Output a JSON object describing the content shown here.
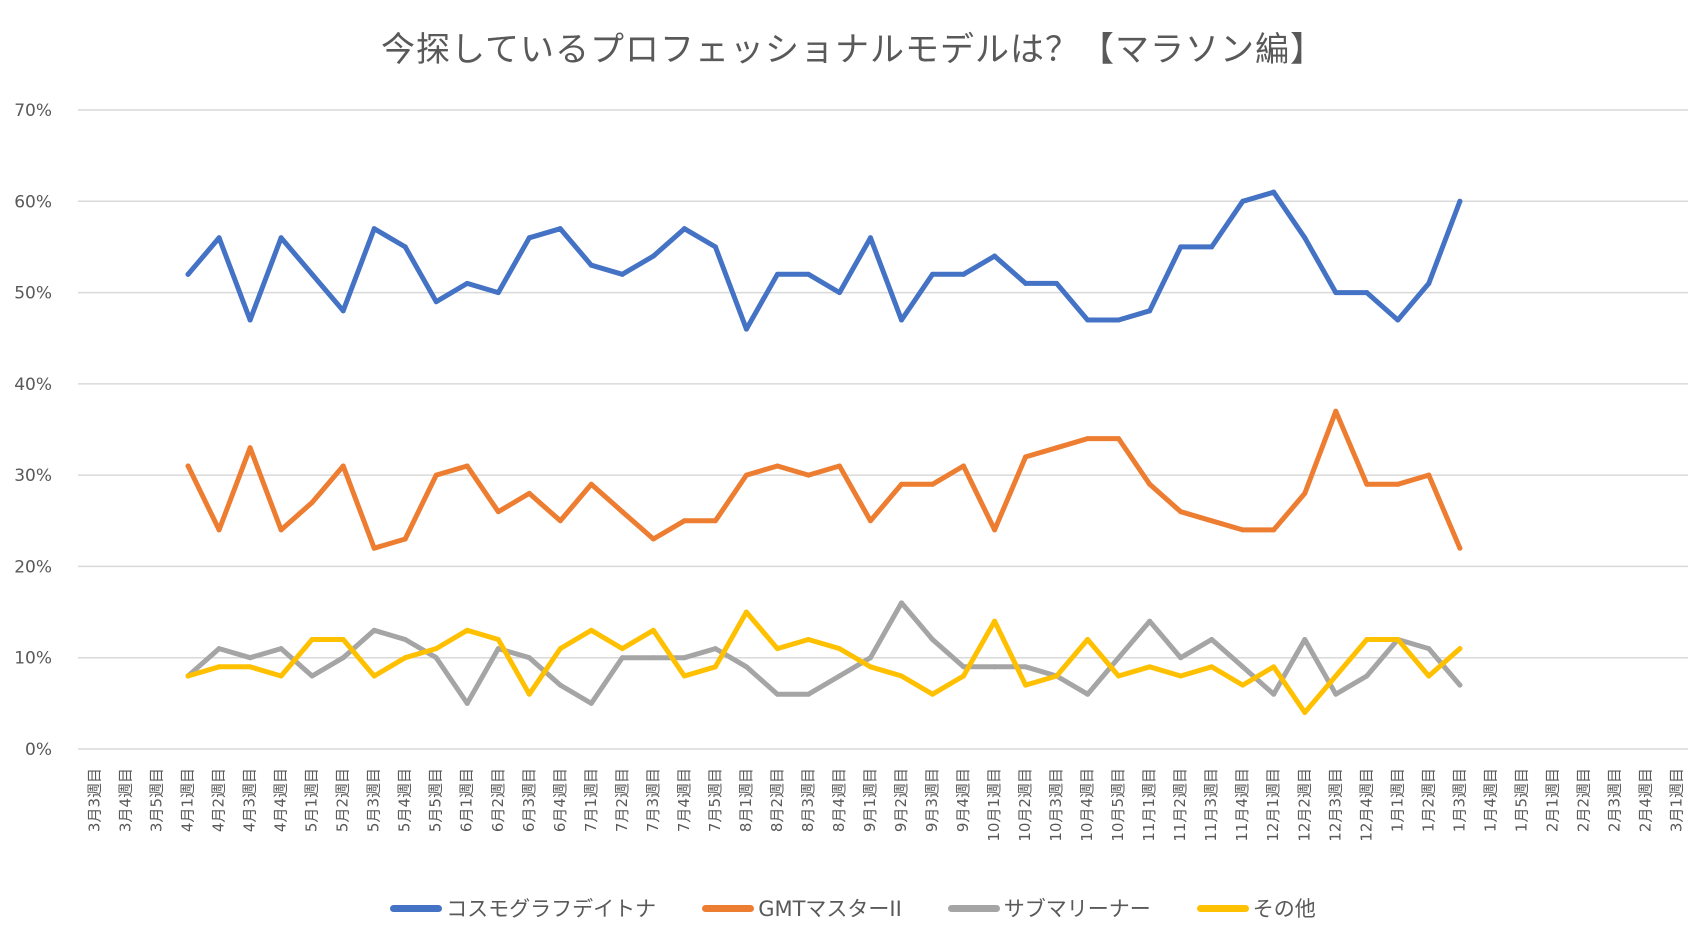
{
  "chart_data": {
    "type": "line",
    "title": "今探しているプロフェッショナルモデルは？【マラソン編】",
    "xlabel": "",
    "ylabel": "",
    "ylim": [
      0,
      70
    ],
    "y_ticks": [
      "0%",
      "10%",
      "20%",
      "30%",
      "40%",
      "50%",
      "60%",
      "70%"
    ],
    "y_tick_values": [
      0,
      10,
      20,
      30,
      40,
      50,
      60,
      70
    ],
    "grid": true,
    "legend_position": "bottom",
    "categories": [
      "3月3週目",
      "3月4週目",
      "3月5週目",
      "4月1週目",
      "4月2週目",
      "4月3週目",
      "4月4週目",
      "5月1週目",
      "5月2週目",
      "5月3週目",
      "5月4週目",
      "5月5週目",
      "6月1週目",
      "6月2週目",
      "6月3週目",
      "6月4週目",
      "7月1週目",
      "7月2週目",
      "7月3週目",
      "7月4週目",
      "7月5週目",
      "8月1週目",
      "8月2週目",
      "8月3週目",
      "8月4週目",
      "9月1週目",
      "9月2週目",
      "9月3週目",
      "9月4週目",
      "10月1週目",
      "10月2週目",
      "10月3週目",
      "10月4週目",
      "10月5週目",
      "11月1週目",
      "11月2週目",
      "11月3週目",
      "11月4週目",
      "12月1週目",
      "12月2週目",
      "12月3週目",
      "12月4週目",
      "1月1週目",
      "1月2週目",
      "1月3週目",
      "1月4週目",
      "1月5週目",
      "2月1週目",
      "2月2週目",
      "2月3週目",
      "2月4週目",
      "3月1週目"
    ],
    "series": [
      {
        "name": "コスモグラフデイトナ",
        "color": "#4472C4",
        "values": [
          null,
          null,
          null,
          52,
          56,
          47,
          56,
          52,
          48,
          57,
          55,
          49,
          51,
          50,
          56,
          57,
          53,
          52,
          54,
          57,
          55,
          46,
          52,
          52,
          50,
          56,
          47,
          52,
          52,
          54,
          51,
          51,
          47,
          47,
          48,
          55,
          55,
          60,
          61,
          56,
          50,
          50,
          47,
          51,
          60,
          null,
          null,
          null,
          null,
          null,
          null,
          null
        ]
      },
      {
        "name": "GMTマスターII",
        "color": "#ED7D31",
        "values": [
          null,
          null,
          null,
          31,
          24,
          33,
          24,
          27,
          31,
          22,
          23,
          30,
          31,
          26,
          28,
          25,
          29,
          26,
          23,
          25,
          25,
          30,
          31,
          30,
          31,
          25,
          29,
          29,
          31,
          24,
          32,
          33,
          34,
          34,
          29,
          26,
          25,
          24,
          24,
          28,
          37,
          29,
          29,
          30,
          22,
          null,
          null,
          null,
          null,
          null,
          null,
          null
        ]
      },
      {
        "name": "サブマリーナー",
        "color": "#A5A5A5",
        "values": [
          null,
          null,
          null,
          8,
          11,
          10,
          11,
          8,
          10,
          13,
          12,
          10,
          5,
          11,
          10,
          7,
          5,
          10,
          10,
          10,
          11,
          9,
          6,
          6,
          8,
          10,
          16,
          12,
          9,
          9,
          9,
          8,
          6,
          10,
          14,
          10,
          12,
          9,
          6,
          12,
          6,
          8,
          12,
          11,
          7,
          null,
          null,
          null,
          null,
          null,
          null,
          null
        ]
      },
      {
        "name": "その他",
        "color": "#FFC000",
        "values": [
          null,
          null,
          null,
          8,
          9,
          9,
          8,
          12,
          12,
          8,
          10,
          11,
          13,
          12,
          6,
          11,
          13,
          11,
          13,
          8,
          9,
          15,
          11,
          12,
          11,
          9,
          8,
          6,
          8,
          14,
          7,
          8,
          12,
          8,
          9,
          8,
          9,
          7,
          9,
          4,
          8,
          12,
          12,
          8,
          11,
          null,
          null,
          null,
          null,
          null,
          null,
          null
        ]
      }
    ]
  }
}
